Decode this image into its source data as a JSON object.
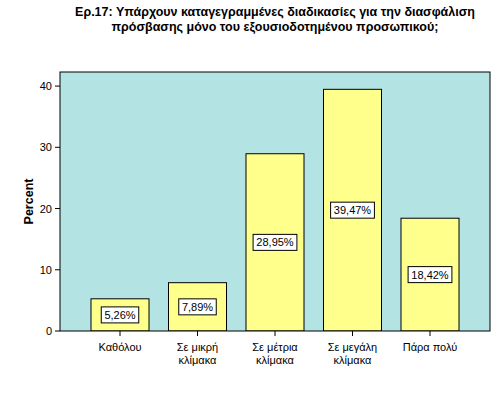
{
  "chart_data": {
    "type": "bar",
    "title": "Ερ.17: Υπάρχουν καταγεγραμμένες διαδικασίες για την διασφάλιση\nπρόσβασης μόνο του εξουσιοδοτημένου προσωπικού;",
    "y_label": "Percent",
    "categories": [
      "Καθόλου",
      "Σε μικρή\nκλίμακα",
      "Σε μέτρια\nκλίμακα",
      "Σε μεγάλη\nκλίμακα",
      "Πάρα πολύ"
    ],
    "values": [
      5.26,
      7.89,
      28.95,
      39.47,
      18.42
    ],
    "value_labels": [
      "5,26%",
      "7,89%",
      "28,95%",
      "39,47%",
      "18,42%"
    ],
    "color": "#ffff8c",
    "ylim": [
      0,
      42.3
    ],
    "yticks": [
      0,
      10,
      20,
      30,
      40
    ],
    "grid": false,
    "data_labels": true
  }
}
